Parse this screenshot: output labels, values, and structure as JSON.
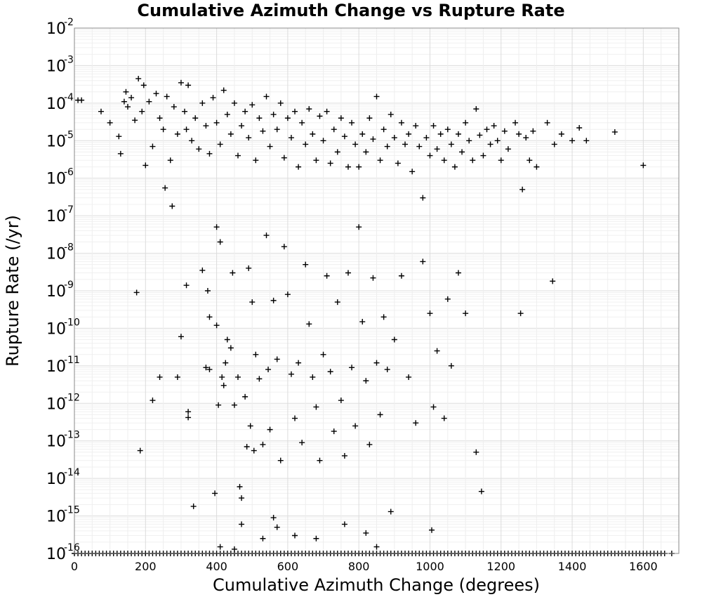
{
  "chart_data": {
    "type": "scatter",
    "title": "Cumulative Azimuth Change vs Rupture Rate",
    "xlabel": "Cumulative Azimuth Change (degrees)",
    "ylabel": "Rupture Rate (/yr)",
    "xlim": [
      0,
      1700
    ],
    "ylim": [
      1e-16,
      0.01
    ],
    "yscale": "log",
    "grid": true,
    "marker": "plus",
    "marker_color": "#000000",
    "xticks": [
      0,
      200,
      400,
      600,
      800,
      1000,
      1200,
      1400,
      1600
    ],
    "xtick_labels": [
      "0",
      "200",
      "400",
      "600",
      "800",
      "1000",
      "1200",
      "1400",
      "1600"
    ],
    "yticks": [
      {
        "base": "10",
        "exp": "-16"
      },
      {
        "base": "10",
        "exp": "-15"
      },
      {
        "base": "10",
        "exp": "-14"
      },
      {
        "base": "10",
        "exp": "-13"
      },
      {
        "base": "10",
        "exp": "-12"
      },
      {
        "base": "10",
        "exp": "-11"
      },
      {
        "base": "10",
        "exp": "-10"
      },
      {
        "base": "10",
        "exp": "-9"
      },
      {
        "base": "10",
        "exp": "-8"
      },
      {
        "base": "10",
        "exp": "-7"
      },
      {
        "base": "10",
        "exp": "-6"
      },
      {
        "base": "10",
        "exp": "-5"
      },
      {
        "base": "10",
        "exp": "-4"
      },
      {
        "base": "10",
        "exp": "-3"
      },
      {
        "base": "10",
        "exp": "-2"
      }
    ],
    "series": [
      {
        "points": [
          [
            10,
            0.00012
          ],
          [
            20,
            0.00012
          ],
          [
            75,
            6e-05
          ],
          [
            100,
            3e-05
          ],
          [
            125,
            1.3e-05
          ],
          [
            130,
            4.5e-06
          ],
          [
            140,
            0.00011
          ],
          [
            145,
            0.0002
          ],
          [
            150,
            8e-05
          ],
          [
            160,
            0.00014
          ],
          [
            170,
            3.5e-05
          ],
          [
            180,
            0.00045
          ],
          [
            190,
            6e-05
          ],
          [
            195,
            0.0003
          ],
          [
            200,
            2.2e-06
          ],
          [
            210,
            0.00011
          ],
          [
            220,
            7e-06
          ],
          [
            230,
            0.00018
          ],
          [
            240,
            4e-05
          ],
          [
            250,
            2e-05
          ],
          [
            255,
            5.5e-07
          ],
          [
            260,
            0.00015
          ],
          [
            270,
            3e-06
          ],
          [
            275,
            1.8e-07
          ],
          [
            280,
            8e-05
          ],
          [
            290,
            1.5e-05
          ],
          [
            300,
            0.00035
          ],
          [
            310,
            6e-05
          ],
          [
            315,
            2e-05
          ],
          [
            320,
            0.0003
          ],
          [
            330,
            1e-05
          ],
          [
            340,
            4e-05
          ],
          [
            350,
            6e-06
          ],
          [
            360,
            0.0001
          ],
          [
            370,
            2.5e-05
          ],
          [
            380,
            4.5e-06
          ],
          [
            390,
            0.00014
          ],
          [
            400,
            3e-05
          ],
          [
            410,
            8e-06
          ],
          [
            420,
            0.00022
          ],
          [
            430,
            5e-05
          ],
          [
            440,
            1.5e-05
          ],
          [
            450,
            0.0001
          ],
          [
            460,
            4e-06
          ],
          [
            470,
            2.5e-05
          ],
          [
            480,
            6e-05
          ],
          [
            490,
            1.2e-05
          ],
          [
            500,
            9e-05
          ],
          [
            510,
            3e-06
          ],
          [
            520,
            4e-05
          ],
          [
            530,
            1.8e-05
          ],
          [
            540,
            0.00015
          ],
          [
            550,
            7e-06
          ],
          [
            560,
            5e-05
          ],
          [
            570,
            2e-05
          ],
          [
            580,
            0.0001
          ],
          [
            590,
            3.5e-06
          ],
          [
            600,
            4e-05
          ],
          [
            610,
            1.2e-05
          ],
          [
            620,
            6e-05
          ],
          [
            630,
            2e-06
          ],
          [
            640,
            3e-05
          ],
          [
            650,
            8e-06
          ],
          [
            660,
            7e-05
          ],
          [
            670,
            1.5e-05
          ],
          [
            680,
            3e-06
          ],
          [
            690,
            4.5e-05
          ],
          [
            700,
            1e-05
          ],
          [
            710,
            6e-05
          ],
          [
            720,
            2.5e-06
          ],
          [
            730,
            2e-05
          ],
          [
            740,
            5e-06
          ],
          [
            750,
            4e-05
          ],
          [
            760,
            1.3e-05
          ],
          [
            770,
            2e-06
          ],
          [
            780,
            3e-05
          ],
          [
            790,
            8e-06
          ],
          [
            800,
            2e-06
          ],
          [
            810,
            1.5e-05
          ],
          [
            820,
            5e-06
          ],
          [
            830,
            4e-05
          ],
          [
            840,
            1.1e-05
          ],
          [
            850,
            0.00015
          ],
          [
            860,
            3e-06
          ],
          [
            870,
            2e-05
          ],
          [
            880,
            7e-06
          ],
          [
            890,
            5e-05
          ],
          [
            900,
            1.2e-05
          ],
          [
            910,
            2.5e-06
          ],
          [
            920,
            3e-05
          ],
          [
            930,
            8e-06
          ],
          [
            940,
            1.5e-05
          ],
          [
            950,
            1.5e-06
          ],
          [
            960,
            2.5e-05
          ],
          [
            970,
            7e-06
          ],
          [
            980,
            3e-07
          ],
          [
            990,
            1.2e-05
          ],
          [
            1000,
            4e-06
          ],
          [
            1010,
            2.5e-05
          ],
          [
            1020,
            6e-06
          ],
          [
            1030,
            1.5e-05
          ],
          [
            1040,
            3e-06
          ],
          [
            1050,
            2e-05
          ],
          [
            1060,
            8e-06
          ],
          [
            1070,
            2e-06
          ],
          [
            1080,
            1.5e-05
          ],
          [
            1090,
            5e-06
          ],
          [
            1100,
            3e-05
          ],
          [
            1110,
            1e-05
          ],
          [
            1120,
            3e-06
          ],
          [
            1130,
            7e-05
          ],
          [
            1140,
            1.4e-05
          ],
          [
            1150,
            4e-06
          ],
          [
            1160,
            2e-05
          ],
          [
            1170,
            8e-06
          ],
          [
            1180,
            2.5e-05
          ],
          [
            1190,
            1e-05
          ],
          [
            1200,
            3e-06
          ],
          [
            1210,
            1.8e-05
          ],
          [
            1220,
            6e-06
          ],
          [
            1240,
            3e-05
          ],
          [
            1250,
            1.5e-05
          ],
          [
            1260,
            5e-07
          ],
          [
            1270,
            1.2e-05
          ],
          [
            1280,
            3e-06
          ],
          [
            1290,
            1.8e-05
          ],
          [
            1300,
            2e-06
          ],
          [
            1330,
            3e-05
          ],
          [
            1350,
            8e-06
          ],
          [
            1370,
            1.5e-05
          ],
          [
            1400,
            1e-05
          ],
          [
            1420,
            2.2e-05
          ],
          [
            1440,
            1e-05
          ],
          [
            1520,
            1.7e-05
          ],
          [
            1600,
            2.2e-06
          ],
          [
            175,
            9e-10
          ],
          [
            185,
            5.5e-14
          ],
          [
            220,
            1.2e-12
          ],
          [
            240,
            5e-12
          ],
          [
            290,
            5e-12
          ],
          [
            300,
            6e-11
          ],
          [
            315,
            1.4e-09
          ],
          [
            320,
            6e-13
          ],
          [
            320,
            4.2e-13
          ],
          [
            335,
            1.8e-15
          ],
          [
            360,
            3.5e-09
          ],
          [
            370,
            9e-12
          ],
          [
            375,
            1e-09
          ],
          [
            380,
            8e-12
          ],
          [
            380,
            2e-10
          ],
          [
            395,
            4e-15
          ],
          [
            400,
            5e-08
          ],
          [
            400,
            1.2e-10
          ],
          [
            405,
            9e-13
          ],
          [
            410,
            2e-08
          ],
          [
            415,
            5e-12
          ],
          [
            420,
            3e-12
          ],
          [
            425,
            1.2e-11
          ],
          [
            430,
            5e-11
          ],
          [
            440,
            3e-11
          ],
          [
            445,
            3e-09
          ],
          [
            450,
            9e-13
          ],
          [
            460,
            5e-12
          ],
          [
            465,
            6e-15
          ],
          [
            470,
            3e-15
          ],
          [
            480,
            1.5e-12
          ],
          [
            485,
            7e-14
          ],
          [
            490,
            4e-09
          ],
          [
            495,
            2.5e-13
          ],
          [
            500,
            5e-10
          ],
          [
            505,
            5.5e-14
          ],
          [
            510,
            2e-11
          ],
          [
            520,
            4.5e-12
          ],
          [
            530,
            8e-14
          ],
          [
            540,
            3e-08
          ],
          [
            545,
            8e-12
          ],
          [
            550,
            2e-13
          ],
          [
            560,
            5.5e-10
          ],
          [
            570,
            1.5e-11
          ],
          [
            580,
            3e-14
          ],
          [
            590,
            1.5e-08
          ],
          [
            600,
            8e-10
          ],
          [
            610,
            6e-12
          ],
          [
            620,
            4e-13
          ],
          [
            630,
            1.2e-11
          ],
          [
            640,
            9e-14
          ],
          [
            650,
            5e-09
          ],
          [
            660,
            1.3e-10
          ],
          [
            670,
            5e-12
          ],
          [
            680,
            8e-13
          ],
          [
            690,
            3e-14
          ],
          [
            700,
            2e-11
          ],
          [
            710,
            2.5e-09
          ],
          [
            720,
            7e-12
          ],
          [
            730,
            1.8e-13
          ],
          [
            740,
            5e-10
          ],
          [
            750,
            1.2e-12
          ],
          [
            760,
            4e-14
          ],
          [
            770,
            3e-09
          ],
          [
            780,
            9e-12
          ],
          [
            790,
            2.5e-13
          ],
          [
            800,
            5e-08
          ],
          [
            810,
            1.5e-10
          ],
          [
            820,
            4e-12
          ],
          [
            830,
            8e-14
          ],
          [
            840,
            2.2e-09
          ],
          [
            850,
            1.2e-11
          ],
          [
            860,
            5e-13
          ],
          [
            870,
            2e-10
          ],
          [
            880,
            8e-12
          ],
          [
            890,
            1.3e-15
          ],
          [
            900,
            5e-11
          ],
          [
            920,
            2.5e-09
          ],
          [
            940,
            5e-12
          ],
          [
            960,
            3e-13
          ],
          [
            980,
            6e-09
          ],
          [
            1000,
            2.5e-10
          ],
          [
            1010,
            8e-13
          ],
          [
            1020,
            2.5e-11
          ],
          [
            1040,
            4e-13
          ],
          [
            1050,
            6e-10
          ],
          [
            1060,
            1e-11
          ],
          [
            1080,
            3e-09
          ],
          [
            1100,
            2.5e-10
          ],
          [
            1130,
            5e-14
          ],
          [
            1145,
            4.5e-15
          ],
          [
            1255,
            2.5e-10
          ],
          [
            1345,
            1.8e-09
          ],
          [
            1005,
            4.2e-16
          ],
          [
            470,
            6e-16
          ],
          [
            530,
            2.5e-16
          ],
          [
            560,
            9e-16
          ],
          [
            620,
            3e-16
          ],
          [
            680,
            2.5e-16
          ],
          [
            760,
            6e-16
          ],
          [
            850,
            1.5e-16
          ],
          [
            410,
            1.5e-16
          ],
          [
            450,
            1.3e-16
          ],
          [
            570,
            5e-16
          ],
          [
            820,
            3.5e-16
          ]
        ]
      },
      {
        "note": "floor",
        "y": 1e-16,
        "x": [
          0,
          10,
          20,
          30,
          40,
          50,
          60,
          70,
          80,
          90,
          100,
          110,
          120,
          130,
          140,
          150,
          160,
          170,
          180,
          190,
          200,
          210,
          220,
          230,
          240,
          250,
          260,
          270,
          280,
          290,
          300,
          310,
          320,
          330,
          340,
          350,
          360,
          370,
          380,
          390,
          400,
          410,
          420,
          430,
          440,
          450,
          460,
          470,
          480,
          490,
          500,
          510,
          520,
          530,
          540,
          550,
          560,
          570,
          580,
          590,
          600,
          610,
          620,
          630,
          640,
          650,
          660,
          670,
          680,
          690,
          700,
          710,
          720,
          730,
          740,
          750,
          760,
          770,
          780,
          790,
          800,
          810,
          820,
          830,
          840,
          850,
          860,
          870,
          880,
          890,
          900,
          910,
          920,
          930,
          940,
          950,
          960,
          970,
          980,
          990,
          1000,
          1010,
          1020,
          1030,
          1040,
          1050,
          1060,
          1070,
          1080,
          1090,
          1100,
          1110,
          1120,
          1130,
          1140,
          1150,
          1160,
          1170,
          1180,
          1190,
          1200,
          1210,
          1220,
          1230,
          1240,
          1250,
          1260,
          1270,
          1280,
          1290,
          1300,
          1310,
          1320,
          1330,
          1340,
          1350,
          1360,
          1370,
          1380,
          1390,
          1400,
          1410,
          1420,
          1430,
          1440,
          1450,
          1460,
          1470,
          1480,
          1490,
          1500,
          1510,
          1520,
          1530,
          1540,
          1550,
          1560,
          1570,
          1580,
          1590,
          1600,
          1610,
          1620,
          1630,
          1640,
          1650,
          1660,
          1680
        ]
      }
    ]
  }
}
